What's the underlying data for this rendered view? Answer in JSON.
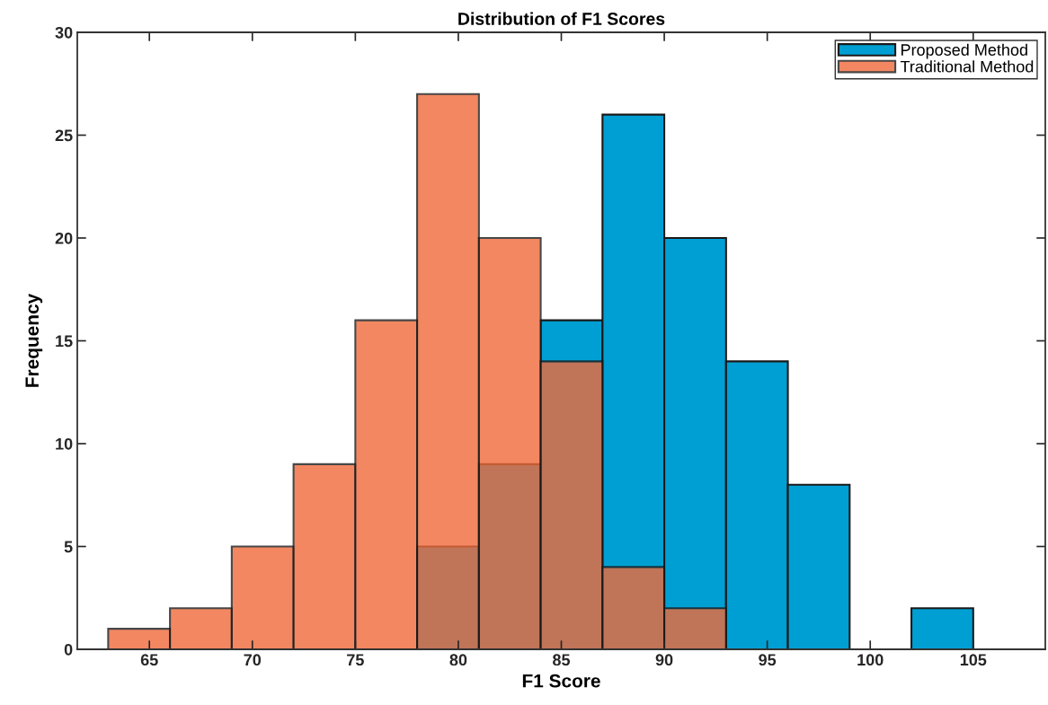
{
  "chart_data": {
    "type": "histogram",
    "title": "Distribution of F1 Scores",
    "xlabel": "F1 Score",
    "ylabel": "Frequency",
    "bins": [
      63,
      66,
      69,
      72,
      75,
      78,
      81,
      84,
      87,
      90,
      93,
      96,
      99,
      102,
      105
    ],
    "series": [
      {
        "name": "Proposed Method",
        "color": "#009fd3",
        "values": [
          0,
          0,
          0,
          0,
          0,
          5,
          9,
          16,
          26,
          20,
          14,
          8,
          0,
          2
        ]
      },
      {
        "name": "Traditional Method",
        "color": "#f06a3a",
        "values": [
          1,
          2,
          5,
          9,
          16,
          27,
          20,
          14,
          4,
          2,
          0,
          0,
          0,
          0
        ]
      }
    ],
    "xlim": [
      61.5,
      108.5
    ],
    "xticks": [
      65,
      70,
      75,
      80,
      85,
      90,
      95,
      100,
      105
    ],
    "ylim": [
      0,
      30
    ],
    "yticks": [
      0,
      5,
      10,
      15,
      20,
      25,
      30
    ],
    "grid": false,
    "legend": "top right"
  }
}
